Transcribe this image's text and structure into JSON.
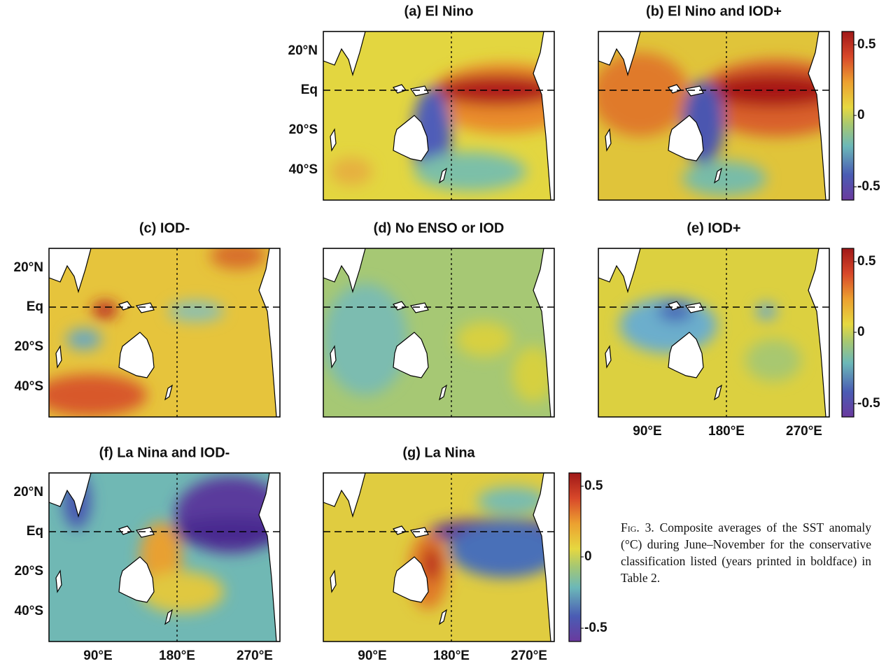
{
  "panels": [
    {
      "title": "(a) El Nino",
      "y_labels": [
        "20°N",
        "Eq",
        "20°S",
        "40°S"
      ]
    },
    {
      "title": "(b) El Nino and IOD+"
    },
    {
      "title": "(c) IOD-",
      "y_labels": [
        "20°N",
        "Eq",
        "20°S",
        "40°S"
      ]
    },
    {
      "title": "(d) No ENSO or IOD"
    },
    {
      "title": "(e) IOD+",
      "x_labels": [
        "90°E",
        "180°E",
        "270°E"
      ]
    },
    {
      "title": "(f) La Nina and IOD-",
      "y_labels": [
        "20°N",
        "Eq",
        "20°S",
        "40°S"
      ],
      "x_labels": [
        "90°E",
        "180°E",
        "270°E"
      ]
    },
    {
      "title": "(g) La Nina",
      "x_labels": [
        "90°E",
        "180°E",
        "270°E"
      ]
    }
  ],
  "colorbars": [
    {
      "ticks": [
        0.5,
        0,
        -0.5
      ]
    },
    {
      "ticks": [
        0.5,
        0,
        -0.5
      ]
    },
    {
      "ticks": [
        0.5,
        0,
        -0.5
      ]
    }
  ],
  "caption": {
    "label": "Fig. 3.",
    "text": "Composite averages of the SST anomaly (°C) during June–November for the conservative classification listed (years printed in boldface) in Table 2."
  }
}
